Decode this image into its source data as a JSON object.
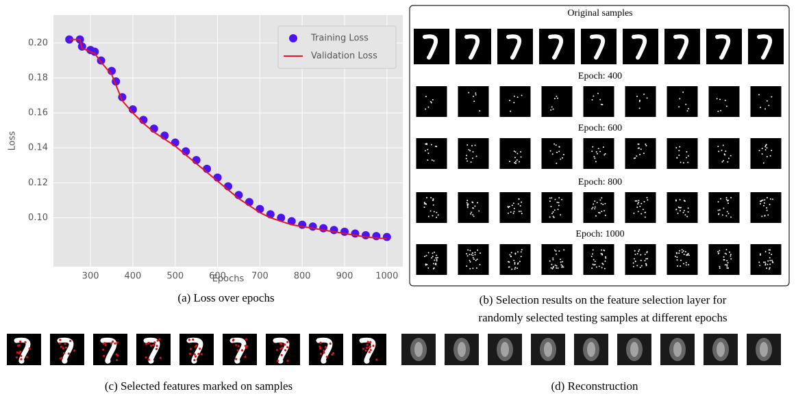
{
  "chart_data": {
    "type": "line",
    "x_label": "Epochs",
    "y_label": "Loss",
    "x": [
      250,
      275,
      280,
      300,
      310,
      325,
      350,
      360,
      375,
      400,
      425,
      450,
      475,
      500,
      525,
      550,
      575,
      600,
      625,
      650,
      675,
      700,
      725,
      750,
      775,
      800,
      825,
      850,
      875,
      900,
      925,
      950,
      975,
      1000
    ],
    "series": [
      {
        "name": "Training Loss",
        "color": "#4b14f0",
        "marker": "dot",
        "values": [
          0.202,
          0.202,
          0.198,
          0.196,
          0.195,
          0.19,
          0.184,
          0.178,
          0.169,
          0.162,
          0.156,
          0.151,
          0.147,
          0.143,
          0.138,
          0.133,
          0.128,
          0.123,
          0.118,
          0.113,
          0.109,
          0.105,
          0.102,
          0.1,
          0.098,
          0.096,
          0.095,
          0.094,
          0.093,
          0.092,
          0.091,
          0.09,
          0.0895,
          0.089
        ]
      },
      {
        "name": "Validation Loss",
        "color": "#e8141e",
        "marker": "line",
        "values": [
          0.202,
          0.202,
          0.197,
          0.195,
          0.194,
          0.189,
          0.182,
          0.176,
          0.167,
          0.16,
          0.154,
          0.149,
          0.145,
          0.141,
          0.136,
          0.131,
          0.126,
          0.121,
          0.116,
          0.111,
          0.107,
          0.103,
          0.1,
          0.098,
          0.096,
          0.095,
          0.094,
          0.093,
          0.092,
          0.091,
          0.09,
          0.089,
          0.0885,
          0.088
        ]
      }
    ],
    "xlim": [
      212.5,
      1037.5
    ],
    "xticks": [
      300,
      400,
      500,
      600,
      700,
      800,
      900,
      1000
    ],
    "ylim": [
      0.072,
      0.216
    ],
    "yticks": [
      {
        "value": 0.1,
        "label": "0.10"
      },
      {
        "value": 0.12,
        "label": "0.12"
      },
      {
        "value": 0.14,
        "label": "0.14"
      },
      {
        "value": 0.16,
        "label": "0.16"
      },
      {
        "value": 0.18,
        "label": "0.18"
      },
      {
        "value": 0.2,
        "label": "0.20"
      }
    ],
    "grid": true,
    "legend": "upper right",
    "background": "#e5e5e5"
  },
  "panel_a": {
    "caption": "(a) Loss over epochs"
  },
  "panel_b": {
    "row_titles": [
      "Original samples",
      "Epoch: 400",
      "Epoch: 600",
      "Epoch: 800",
      "Epoch: 1000"
    ],
    "caption_lines": [
      "(b) Selection results on the feature selection layer for",
      "randomly selected testing samples at different epochs"
    ]
  },
  "panel_c": {
    "caption": "(c) Selected features marked on samples"
  },
  "panel_d": {
    "caption": "(d) Reconstruction"
  }
}
